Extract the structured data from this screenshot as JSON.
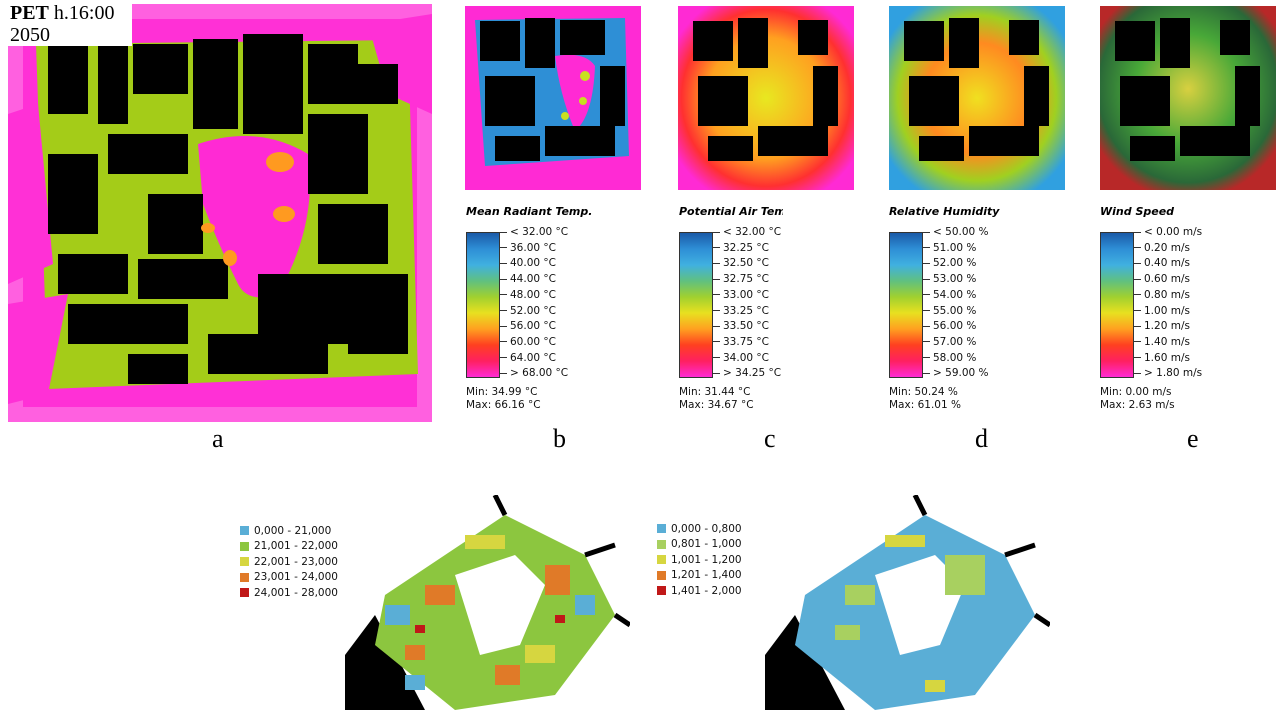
{
  "pet_title": {
    "bold": "PET",
    "time": " h.16:00",
    "year": "2050"
  },
  "panel_labels": [
    "a",
    "b",
    "c",
    "d",
    "e"
  ],
  "legends": [
    {
      "title": "Mean Radiant Temp.",
      "ticks": [
        "< 32.00 °C",
        "36.00  °C",
        "40.00  °C",
        "44.00  °C",
        "48.00  °C",
        "52.00  °C",
        "56.00  °C",
        "60.00  °C",
        "64.00  °C",
        "> 68.00 °C"
      ],
      "min": "Min: 34.99 °C",
      "max": "Max: 66.16 °C"
    },
    {
      "title": "Potential Air Temp",
      "ticks": [
        "< 32.00 °C",
        "32.25  °C",
        "32.50  °C",
        "32.75  °C",
        "33.00  °C",
        "33.25  °C",
        "33.50  °C",
        "33.75  °C",
        "34.00  °C",
        "> 34.25 °C"
      ],
      "min": "Min: 31.44 °C",
      "max": "Max: 34.67 °C"
    },
    {
      "title": "Relative Humidity",
      "ticks": [
        "< 50.00 %",
        "51.00  %",
        "52.00  %",
        "53.00  %",
        "54.00  %",
        "55.00  %",
        "56.00  %",
        "57.00  %",
        "58.00  %",
        "> 59.00 %"
      ],
      "min": "Min: 50.24 %",
      "max": "Max: 61.01 %"
    },
    {
      "title": "Wind Speed",
      "ticks": [
        "< 0.00 m/s",
        "0.20  m/s",
        "0.40  m/s",
        "0.60  m/s",
        "0.80  m/s",
        "1.00  m/s",
        "1.20  m/s",
        "1.40  m/s",
        "1.60  m/s",
        "> 1.80 m/s"
      ],
      "min": "Min: 0.00 m/s",
      "max": "Max: 2.63 m/s"
    }
  ],
  "legend_3d_left": {
    "items": [
      {
        "label": "0,000 - 21,000",
        "color": "#5aaed6"
      },
      {
        "label": "21,001 - 22,000",
        "color": "#8cc63f"
      },
      {
        "label": "22,001 - 23,000",
        "color": "#d6d640"
      },
      {
        "label": "23,001 - 24,000",
        "color": "#e07a28"
      },
      {
        "label": "24,001 - 28,000",
        "color": "#c01818"
      }
    ]
  },
  "legend_3d_right": {
    "items": [
      {
        "label": "0,000 - 0,800",
        "color": "#5aaed6"
      },
      {
        "label": "0,801 - 1,000",
        "color": "#a8d060"
      },
      {
        "label": "1,001 - 1,200",
        "color": "#d6d640"
      },
      {
        "label": "1,201 - 1,400",
        "color": "#e07a28"
      },
      {
        "label": "1,401 - 2,000",
        "color": "#c01818"
      }
    ]
  },
  "colors": {
    "magenta": "#ff2ad4",
    "lime": "#a4cc18",
    "building": "#000000"
  }
}
